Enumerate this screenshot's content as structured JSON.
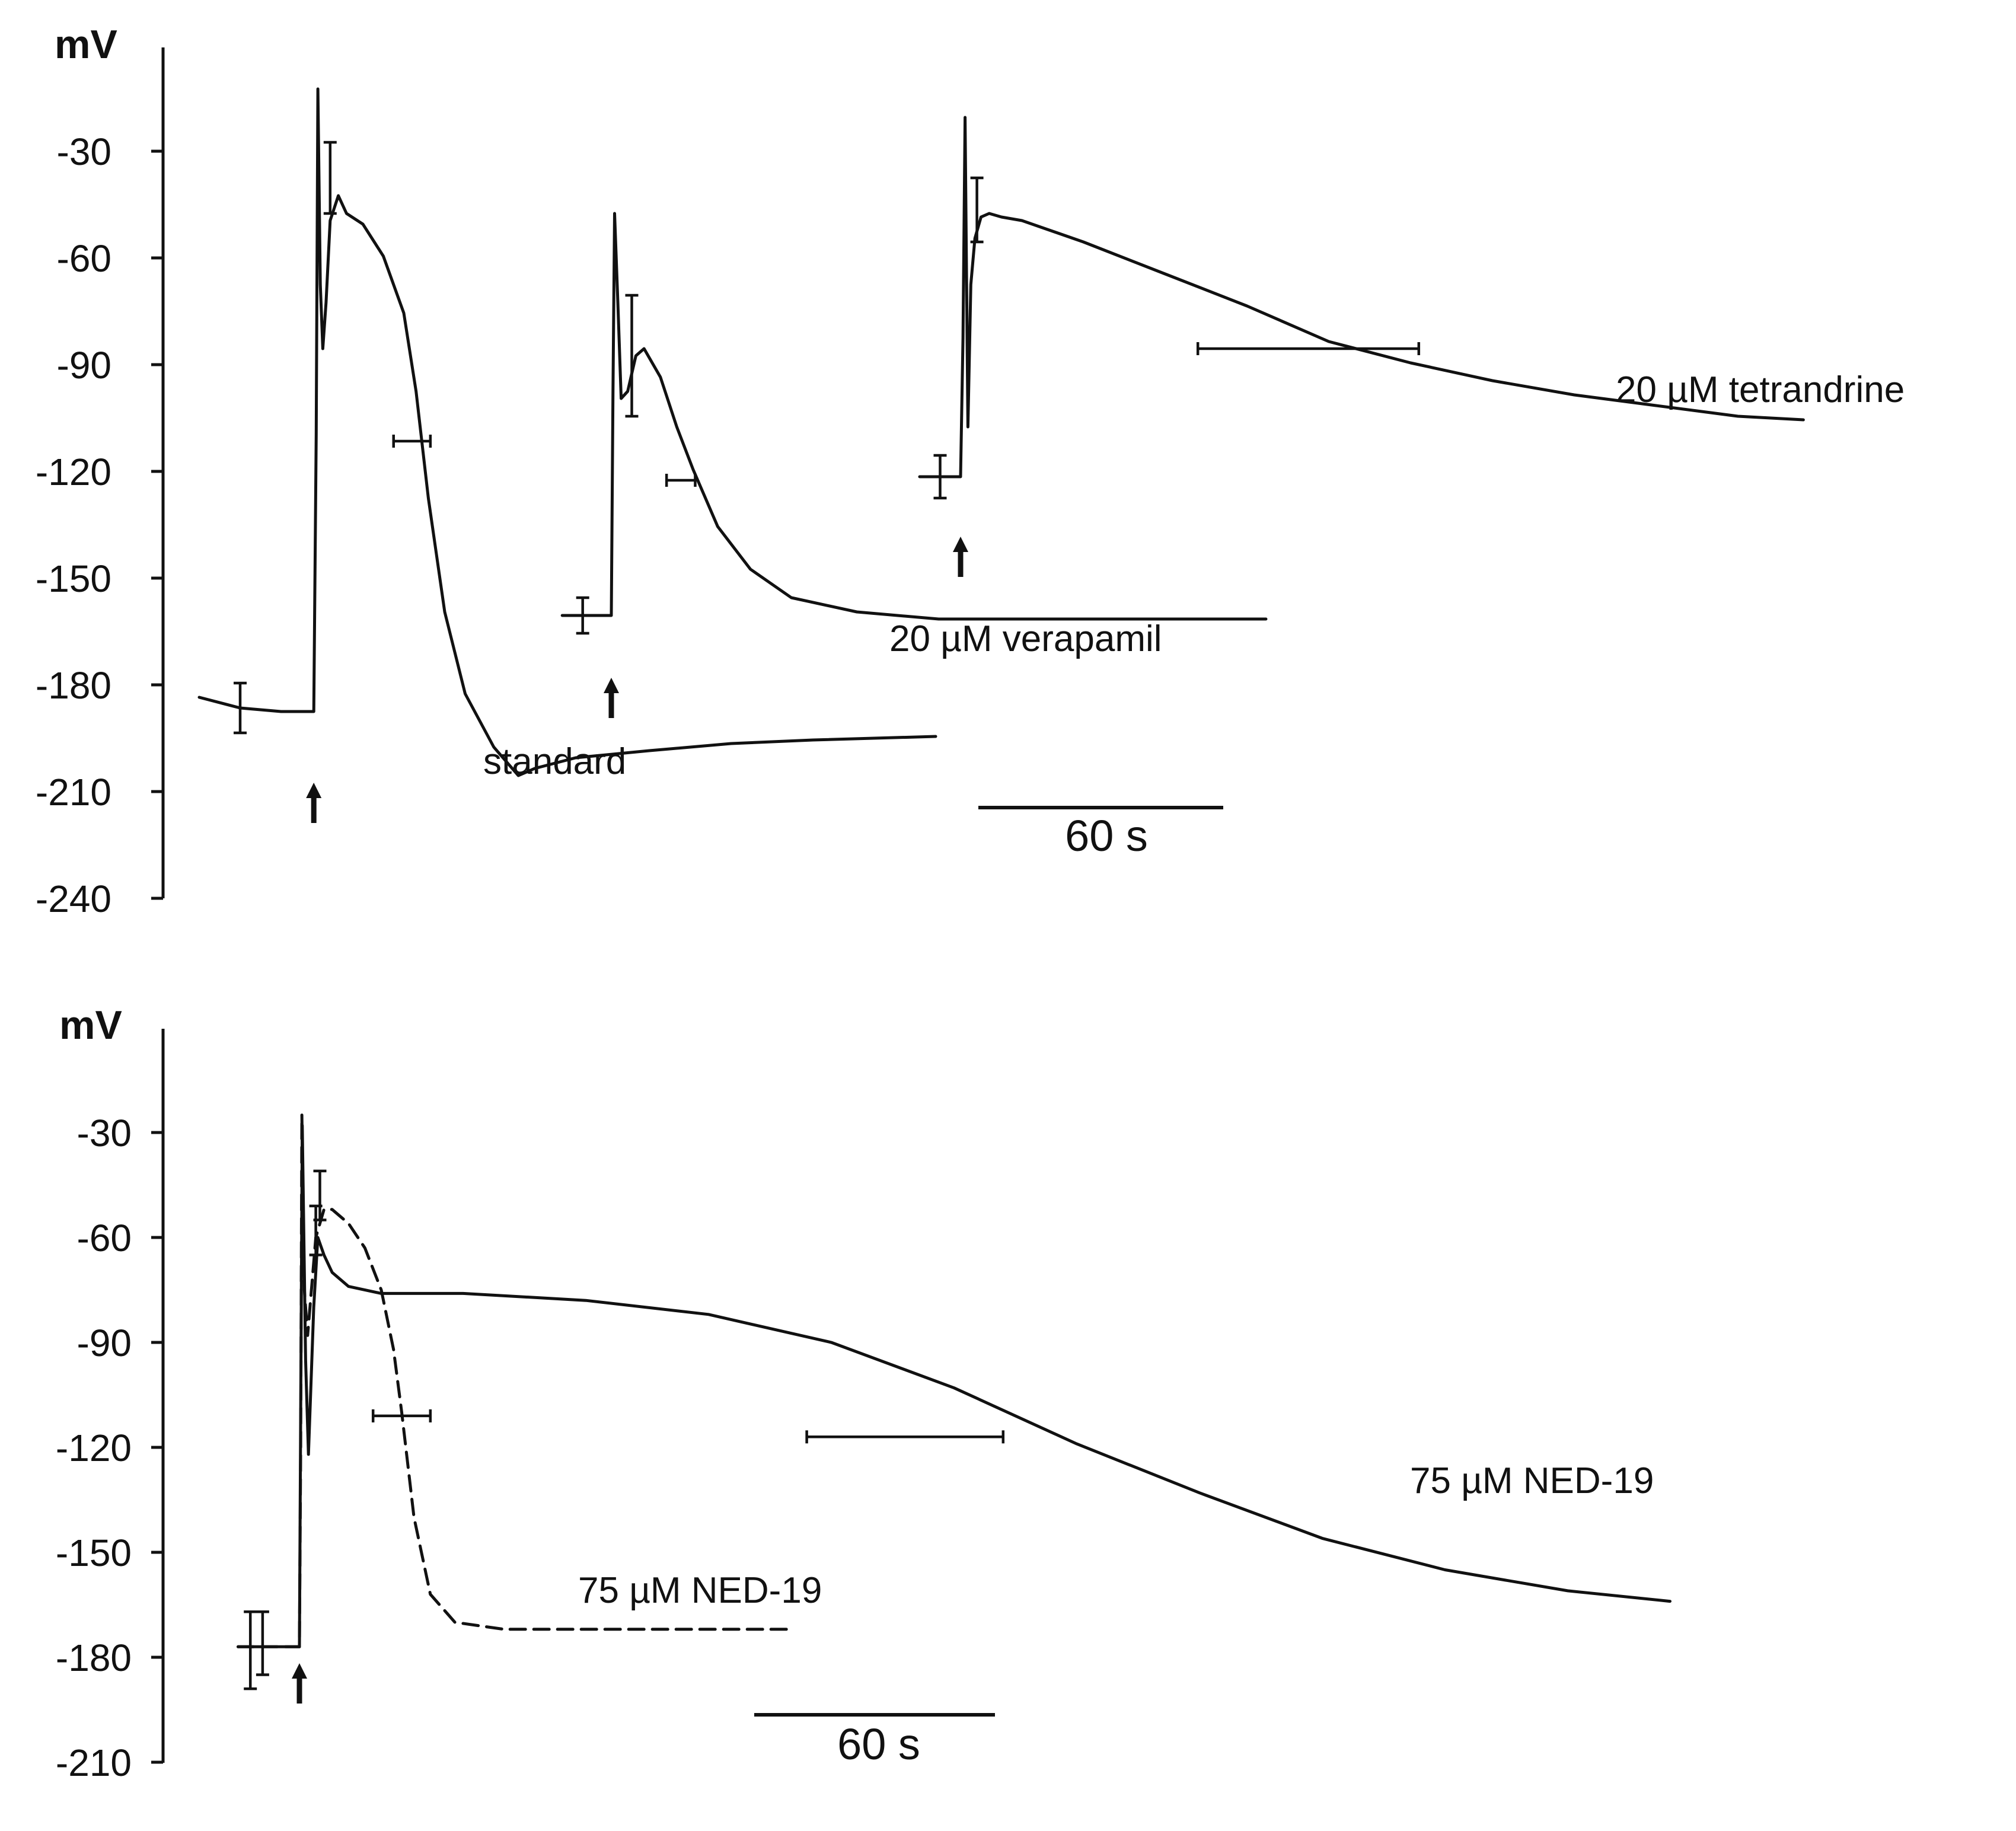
{
  "chart_data": [
    {
      "type": "line",
      "ylabel": "mV",
      "yticks": [
        -30,
        -60,
        -90,
        -120,
        -150,
        -180,
        -210,
        -240
      ],
      "ylim": [
        -240,
        0
      ],
      "x_unit": "s",
      "scale_bar": {
        "value": 60,
        "label": "60 s"
      },
      "series": [
        {
          "label": "standard",
          "style": "solid",
          "points": [
            [
              -20,
              -196
            ],
            [
              -10,
              -199
            ],
            [
              0,
              -200
            ],
            [
              8,
              -200
            ],
            [
              8.6,
              -122
            ],
            [
              9,
              -25
            ],
            [
              9.6,
              -80
            ],
            [
              10.2,
              -98
            ],
            [
              11,
              -85
            ],
            [
              12,
              -62
            ],
            [
              14,
              -55
            ],
            [
              16,
              -60
            ],
            [
              20,
              -63
            ],
            [
              25,
              -72
            ],
            [
              30,
              -88
            ],
            [
              33,
              -110
            ],
            [
              36,
              -140
            ],
            [
              40,
              -172
            ],
            [
              45,
              -195
            ],
            [
              52,
              -210
            ],
            [
              58,
              -218
            ],
            [
              62,
              -216
            ],
            [
              72,
              -213
            ],
            [
              90,
              -211
            ],
            [
              110,
              -209
            ],
            [
              130,
              -208
            ],
            [
              160,
              -207
            ]
          ],
          "error_bars": [
            {
              "x": -10,
              "y": -199,
              "dy": 7,
              "orient": "v"
            },
            {
              "x": 12,
              "y": -50,
              "dy": 10,
              "orient": "v"
            },
            {
              "x": 32,
              "y": -124,
              "dx": 4.5,
              "orient": "h"
            }
          ]
        },
        {
          "label": "20 µM verapamil",
          "style": "solid",
          "points": [
            [
              -12,
              -173
            ],
            [
              0,
              -173
            ],
            [
              0.4,
              -110
            ],
            [
              0.8,
              -60
            ],
            [
              1.6,
              -85
            ],
            [
              2.4,
              -112
            ],
            [
              4,
              -110
            ],
            [
              6,
              -100
            ],
            [
              8,
              -98
            ],
            [
              12,
              -106
            ],
            [
              16,
              -120
            ],
            [
              20,
              -132
            ],
            [
              26,
              -148
            ],
            [
              34,
              -160
            ],
            [
              44,
              -168
            ],
            [
              60,
              -172
            ],
            [
              80,
              -174
            ],
            [
              100,
              -174
            ],
            [
              120,
              -174
            ],
            [
              140,
              -174
            ],
            [
              160,
              -174
            ]
          ],
          "error_bars": [
            {
              "x": -7,
              "y": -173,
              "dy": 5,
              "orient": "v"
            },
            {
              "x": 5,
              "y": -100,
              "dy": 17,
              "orient": "v"
            },
            {
              "x": 17,
              "y": -135,
              "dx": 3.5,
              "orient": "h"
            }
          ]
        },
        {
          "label": "20 µM tetrandrine",
          "style": "solid",
          "points": [
            [
              -10,
              -134
            ],
            [
              -5,
              -134
            ],
            [
              0,
              -134
            ],
            [
              0.6,
              -95
            ],
            [
              1.1,
              -33
            ],
            [
              1.8,
              -120
            ],
            [
              2.5,
              -80
            ],
            [
              3.5,
              -67
            ],
            [
              5,
              -61
            ],
            [
              7,
              -60
            ],
            [
              10,
              -61
            ],
            [
              15,
              -62
            ],
            [
              30,
              -68
            ],
            [
              50,
              -77
            ],
            [
              70,
              -86
            ],
            [
              90,
              -96
            ],
            [
              110,
              -102
            ],
            [
              130,
              -107
            ],
            [
              150,
              -111
            ],
            [
              170,
              -114
            ],
            [
              190,
              -117
            ],
            [
              206,
              -118
            ]
          ],
          "error_bars": [
            {
              "x": -5,
              "y": -134,
              "dy": 6,
              "orient": "v"
            },
            {
              "x": 4,
              "y": -59,
              "dy": 9,
              "orient": "v"
            },
            {
              "x": 85,
              "y": -98,
              "dx": 27,
              "orient": "h"
            }
          ]
        }
      ],
      "stimulus_arrows": [
        {
          "series": "standard",
          "x": 8
        },
        {
          "series": "20 µM verapamil",
          "x": 0
        },
        {
          "series": "20 µM tetrandrine",
          "x": 0
        }
      ]
    },
    {
      "type": "line",
      "ylabel": "mV",
      "yticks": [
        -30,
        -60,
        -90,
        -120,
        -150,
        -180,
        -210
      ],
      "ylim": [
        -210,
        0
      ],
      "x_unit": "s",
      "scale_bar": {
        "value": 60,
        "label": "60 s"
      },
      "series": [
        {
          "label": "75 µM NED-19",
          "style": "dashed",
          "points": [
            [
              -15,
              -177
            ],
            [
              0,
              -177
            ],
            [
              0.3,
              -120
            ],
            [
              0.6,
              -25
            ],
            [
              1.2,
              -75
            ],
            [
              2,
              -88
            ],
            [
              4,
              -60
            ],
            [
              6,
              -52
            ],
            [
              8,
              -52
            ],
            [
              12,
              -56
            ],
            [
              16,
              -63
            ],
            [
              20,
              -75
            ],
            [
              23,
              -92
            ],
            [
              25,
              -110
            ],
            [
              28,
              -140
            ],
            [
              32,
              -162
            ],
            [
              38,
              -170
            ],
            [
              50,
              -172
            ],
            [
              70,
              -172
            ],
            [
              100,
              -172
            ],
            [
              120,
              -172
            ]
          ],
          "error_bars": [
            {
              "x": -12,
              "y": -178,
              "dy": 11,
              "orient": "v"
            },
            {
              "x": 5,
              "y": -48,
              "dy": 7,
              "orient": "v"
            },
            {
              "x": 25,
              "y": -111,
              "dx": 7,
              "orient": "h"
            }
          ]
        },
        {
          "label": "75 µM NED-19",
          "style": "solid",
          "points": [
            [
              -15,
              -177
            ],
            [
              0,
              -177
            ],
            [
              0.3,
              -110
            ],
            [
              0.7,
              -28
            ],
            [
              1.5,
              -95
            ],
            [
              2.2,
              -122
            ],
            [
              3.5,
              -80
            ],
            [
              4.5,
              -60
            ],
            [
              6,
              -65
            ],
            [
              8,
              -70
            ],
            [
              12,
              -74
            ],
            [
              20,
              -76
            ],
            [
              40,
              -76
            ],
            [
              70,
              -78
            ],
            [
              100,
              -82
            ],
            [
              130,
              -90
            ],
            [
              160,
              -103
            ],
            [
              190,
              -119
            ],
            [
              220,
              -133
            ],
            [
              250,
              -146
            ],
            [
              280,
              -155
            ],
            [
              310,
              -161
            ],
            [
              335,
              -164
            ]
          ],
          "error_bars": [
            {
              "x": -9,
              "y": -176,
              "dy": 9,
              "orient": "v"
            },
            {
              "x": 4,
              "y": -58,
              "dy": 7,
              "orient": "v"
            },
            {
              "x": 148,
              "y": -117,
              "dx": 24,
              "orient": "h"
            }
          ]
        }
      ],
      "stimulus_arrows": [
        {
          "series": "75 µM NED-19",
          "x": 0
        }
      ]
    }
  ]
}
